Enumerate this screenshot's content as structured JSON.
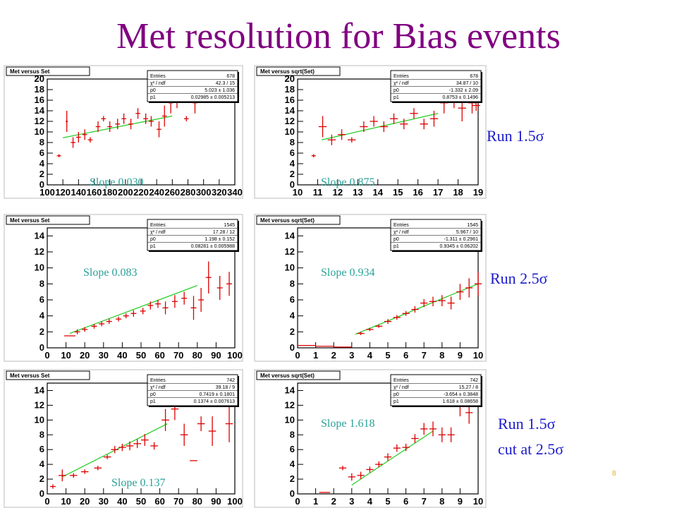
{
  "title": "Met resolution for Bias events",
  "page_number": "8",
  "run_labels": {
    "row1": "Run 1.5σ",
    "row2": "Run 2.5σ",
    "row3_line1": "Run 1.5σ",
    "row3_line2": "cut at 2.5σ"
  },
  "colors": {
    "title": "#800080",
    "slope": "#2aa198",
    "run": "#1c1ccc",
    "data": "#dd0000",
    "fit": "#22cc22"
  },
  "chart_data": [
    {
      "type": "scatter",
      "title": "Met versus Set",
      "slope_label": "Slope 0.030",
      "xlim": [
        100,
        340
      ],
      "ylim": [
        0,
        20
      ],
      "xticks": [
        100,
        120,
        140,
        160,
        180,
        200,
        220,
        240,
        260,
        280,
        300,
        320,
        340
      ],
      "xtick_labels": [
        "100",
        "120",
        "140",
        "160",
        "180",
        "200",
        "220",
        "240",
        "260",
        "280",
        "300",
        "320",
        "340"
      ],
      "yticks": [
        0,
        2,
        4,
        6,
        8,
        10,
        12,
        14,
        16,
        18,
        20
      ],
      "stats": [
        [
          "Entries",
          "678"
        ],
        [
          "χ² / ndf",
          "42.3 / 15"
        ],
        [
          "p0",
          "5.023 ± 1.036"
        ],
        [
          "p1",
          "0.02985 ± 0.005213"
        ]
      ],
      "points": [
        [
          115,
          5.5,
          0,
          0.3
        ],
        [
          125,
          12,
          1.5,
          2
        ],
        [
          133,
          8,
          3,
          1
        ],
        [
          140,
          9,
          3,
          1
        ],
        [
          148,
          9.5,
          3,
          1
        ],
        [
          155,
          8.5,
          3,
          0.5
        ],
        [
          165,
          11,
          3,
          1
        ],
        [
          172,
          12.5,
          3,
          0.5
        ],
        [
          180,
          11,
          3,
          1
        ],
        [
          190,
          11.5,
          3,
          1
        ],
        [
          198,
          12.5,
          3,
          1
        ],
        [
          207,
          11.5,
          3,
          1
        ],
        [
          216,
          13.5,
          3,
          1
        ],
        [
          226,
          12.5,
          3,
          1
        ],
        [
          233,
          12,
          3,
          1
        ],
        [
          243,
          10.5,
          3,
          1.5
        ],
        [
          250,
          13,
          3,
          2
        ],
        [
          258,
          15.5,
          3,
          2
        ],
        [
          266,
          16.5,
          3,
          2
        ],
        [
          278,
          12.5,
          3,
          0.5
        ],
        [
          289,
          15.5,
          3,
          2
        ],
        [
          298,
          18,
          3,
          2
        ]
      ],
      "fit": [
        [
          120,
          8.9
        ],
        [
          260,
          13.0
        ]
      ]
    },
    {
      "type": "scatter",
      "title": "Met versus sqrt(Set)",
      "slope_label": "Slope 0.875",
      "xlim": [
        10,
        19
      ],
      "ylim": [
        0,
        20
      ],
      "xticks": [
        10,
        11,
        12,
        13,
        14,
        15,
        16,
        17,
        18,
        19
      ],
      "xtick_labels": [
        "10",
        "11",
        "12",
        "13",
        "14",
        "15",
        "16",
        "17",
        "18",
        "19"
      ],
      "yticks": [
        0,
        2,
        4,
        6,
        8,
        10,
        12,
        14,
        16,
        18,
        20
      ],
      "stats": [
        [
          "Entries",
          "678"
        ],
        [
          "χ² / ndf",
          "34.87 / 10"
        ],
        [
          "p0",
          "-1.332 ± 2.09"
        ],
        [
          "p1",
          "0.8753 ± 0.1496"
        ]
      ],
      "points": [
        [
          10.8,
          5.5,
          0,
          0.3
        ],
        [
          11.25,
          11,
          0.2,
          2
        ],
        [
          11.7,
          8.5,
          0.2,
          1
        ],
        [
          12.2,
          9.5,
          0.2,
          1
        ],
        [
          12.7,
          8.5,
          0.2,
          0.5
        ],
        [
          13.3,
          11,
          0.2,
          1
        ],
        [
          13.8,
          12,
          0.2,
          1
        ],
        [
          14.3,
          11,
          0.2,
          1
        ],
        [
          14.8,
          12.5,
          0.2,
          1
        ],
        [
          15.3,
          11.5,
          0.2,
          1
        ],
        [
          15.8,
          13.5,
          0.2,
          1
        ],
        [
          16.3,
          11.5,
          0.2,
          1
        ],
        [
          16.8,
          12.5,
          0.2,
          1.5
        ],
        [
          17.3,
          15.5,
          0.2,
          2
        ],
        [
          17.8,
          16.5,
          0.2,
          2
        ],
        [
          18.2,
          14.5,
          0.2,
          2.5
        ],
        [
          18.7,
          15.5,
          0.2,
          2
        ],
        [
          18.9,
          15,
          0.2,
          1
        ]
      ],
      "fit": [
        [
          11.2,
          8.5
        ],
        [
          17.0,
          13.5
        ]
      ]
    },
    {
      "type": "scatter",
      "title": "Met versus Set",
      "slope_label": "Slope 0.083",
      "xlim": [
        0,
        100
      ],
      "ylim": [
        0,
        15
      ],
      "xticks": [
        0,
        10,
        20,
        30,
        40,
        50,
        60,
        70,
        80,
        90,
        100
      ],
      "xtick_labels": [
        "0",
        "10",
        "20",
        "30",
        "40",
        "50",
        "60",
        "70",
        "80",
        "90",
        "100"
      ],
      "yticks": [
        0,
        2,
        4,
        6,
        8,
        10,
        12,
        14
      ],
      "stats": [
        [
          "Entries",
          "1545"
        ],
        [
          "χ² / ndf",
          "17.28 / 12"
        ],
        [
          "p0",
          "1.198 ± 0.152"
        ],
        [
          "p1",
          "0.08281 ± 0.005988"
        ]
      ],
      "points": [
        [
          12,
          1.5,
          3,
          0
        ],
        [
          16,
          2,
          1.5,
          0.3
        ],
        [
          20,
          2.3,
          1.5,
          0.3
        ],
        [
          25,
          2.7,
          1.5,
          0.3
        ],
        [
          29,
          3,
          1.5,
          0.3
        ],
        [
          33,
          3.3,
          1.5,
          0.3
        ],
        [
          38,
          3.6,
          1.5,
          0.3
        ],
        [
          42,
          4,
          1.5,
          0.3
        ],
        [
          46,
          4.3,
          1.5,
          0.4
        ],
        [
          51,
          4.6,
          1.5,
          0.4
        ],
        [
          55,
          5.3,
          1.5,
          0.5
        ],
        [
          59,
          5.5,
          1.5,
          0.5
        ],
        [
          63,
          5,
          1.5,
          0.8
        ],
        [
          68,
          5.8,
          1.5,
          0.8
        ],
        [
          73,
          6.2,
          1.5,
          0.8
        ],
        [
          78,
          5,
          1.5,
          1.5
        ],
        [
          82,
          6,
          1.5,
          1.5
        ],
        [
          86,
          8.8,
          1.5,
          2
        ],
        [
          92,
          7.5,
          1.5,
          1.5
        ],
        [
          97,
          8,
          1.5,
          1.5
        ]
      ],
      "fit": [
        [
          12,
          1.8
        ],
        [
          80,
          7.8
        ]
      ]
    },
    {
      "type": "scatter",
      "title": "Met versus sqrt(Set)",
      "slope_label": "Slope 0.934",
      "xlim": [
        0,
        10
      ],
      "ylim": [
        0,
        15
      ],
      "xticks": [
        0,
        1,
        2,
        3,
        4,
        5,
        6,
        7,
        8,
        9,
        10
      ],
      "xtick_labels": [
        "0",
        "1",
        "2",
        "3",
        "4",
        "5",
        "6",
        "7",
        "8",
        "9",
        "10"
      ],
      "yticks": [
        0,
        2,
        4,
        6,
        8,
        10,
        12,
        14
      ],
      "stats": [
        [
          "Entries",
          "1545"
        ],
        [
          "χ² / ndf",
          "5.967 / 10"
        ],
        [
          "p0",
          "-1.311 ± 0.2961"
        ],
        [
          "p1",
          "0.9345 ± 0.06202"
        ]
      ],
      "points": [
        [
          0.5,
          0.3,
          0.5,
          0
        ],
        [
          1.5,
          0.2,
          0.5,
          0
        ],
        [
          2.5,
          0.1,
          0.5,
          0
        ],
        [
          3.5,
          1.8,
          0.2,
          0.2
        ],
        [
          4.0,
          2.3,
          0.2,
          0.2
        ],
        [
          4.5,
          2.7,
          0.2,
          0.2
        ],
        [
          5.0,
          3.3,
          0.2,
          0.3
        ],
        [
          5.5,
          3.8,
          0.2,
          0.3
        ],
        [
          6.0,
          4.3,
          0.2,
          0.3
        ],
        [
          6.5,
          4.8,
          0.2,
          0.4
        ],
        [
          7.0,
          5.6,
          0.2,
          0.5
        ],
        [
          7.5,
          5.8,
          0.2,
          0.6
        ],
        [
          8.0,
          5.9,
          0.2,
          0.7
        ],
        [
          8.5,
          5.6,
          0.2,
          0.8
        ],
        [
          9.0,
          7,
          0.2,
          1
        ],
        [
          9.5,
          7.5,
          0.2,
          1.2
        ],
        [
          10,
          8,
          0.2,
          1.5
        ]
      ],
      "fit": [
        [
          3.2,
          1.7
        ],
        [
          10,
          8.0
        ]
      ]
    },
    {
      "type": "scatter",
      "title": "Met versus Set",
      "slope_label": "Slope 0.137",
      "xlim": [
        0,
        100
      ],
      "ylim": [
        0,
        15
      ],
      "xticks": [
        0,
        10,
        20,
        30,
        40,
        50,
        60,
        70,
        80,
        90,
        100
      ],
      "xtick_labels": [
        "0",
        "10",
        "20",
        "30",
        "40",
        "50",
        "60",
        "70",
        "80",
        "90",
        "100"
      ],
      "yticks": [
        0,
        2,
        4,
        6,
        8,
        10,
        12,
        14
      ],
      "stats": [
        [
          "Entries",
          "742"
        ],
        [
          "χ² / ndf",
          "39.18 / 9"
        ],
        [
          "p0",
          "0.7419 ± 0.1801"
        ],
        [
          "p1",
          "0.1374 ± 0.007613"
        ]
      ],
      "points": [
        [
          3,
          1,
          1.5,
          0.3
        ],
        [
          8,
          2.5,
          2,
          0.8
        ],
        [
          14,
          2.5,
          2,
          0.3
        ],
        [
          20,
          3,
          2,
          0.3
        ],
        [
          27,
          3.5,
          2,
          0.3
        ],
        [
          32,
          5,
          2,
          0.3
        ],
        [
          36,
          6,
          2,
          0.5
        ],
        [
          40,
          6.3,
          2,
          0.5
        ],
        [
          44,
          6.5,
          2,
          0.6
        ],
        [
          48,
          6.8,
          2,
          0.6
        ],
        [
          52,
          7.3,
          2,
          0.8
        ],
        [
          57,
          6.5,
          2,
          0.5
        ],
        [
          63,
          10,
          2,
          1.5
        ],
        [
          68,
          11.5,
          2,
          1.5
        ],
        [
          73,
          8,
          2,
          1.5
        ],
        [
          78,
          4.5,
          2,
          0
        ],
        [
          82,
          9.5,
          2,
          1
        ],
        [
          88,
          8.5,
          2,
          2
        ],
        [
          97,
          9.5,
          2,
          2.5
        ]
      ],
      "fit": [
        [
          8,
          2.3
        ],
        [
          64,
          9.5
        ]
      ]
    },
    {
      "type": "scatter",
      "title": "Met versus sqrt(Set)",
      "slope_label": "Slope 1.618",
      "xlim": [
        0,
        10
      ],
      "ylim": [
        0,
        15
      ],
      "xticks": [
        0,
        1,
        2,
        3,
        4,
        5,
        6,
        7,
        8,
        9,
        10
      ],
      "xtick_labels": [
        "0",
        "1",
        "2",
        "3",
        "4",
        "5",
        "6",
        "7",
        "8",
        "9",
        "10"
      ],
      "yticks": [
        0,
        2,
        4,
        6,
        8,
        10,
        12,
        14
      ],
      "stats": [
        [
          "Entries",
          "742"
        ],
        [
          "χ² / ndf",
          "15.27 / 8"
        ],
        [
          "p0",
          "-3.654 ± 0.3848"
        ],
        [
          "p1",
          "1.618 ± 0.08658"
        ]
      ],
      "points": [
        [
          1.5,
          0.2,
          0.3,
          0
        ],
        [
          2.5,
          3.5,
          0.2,
          0.3
        ],
        [
          3.0,
          2.3,
          0.2,
          0.5
        ],
        [
          3.5,
          2.5,
          0.2,
          0.5
        ],
        [
          4.0,
          3.3,
          0.2,
          0.4
        ],
        [
          4.5,
          4,
          0.2,
          0.4
        ],
        [
          5.0,
          5,
          0.2,
          0.5
        ],
        [
          5.5,
          6.2,
          0.2,
          0.5
        ],
        [
          6.0,
          6.3,
          0.2,
          0.5
        ],
        [
          6.5,
          7.5,
          0.2,
          0.6
        ],
        [
          7.0,
          8.8,
          0.2,
          0.8
        ],
        [
          7.5,
          8.8,
          0.2,
          1
        ],
        [
          8.0,
          8,
          0.2,
          1
        ],
        [
          8.5,
          8,
          0.2,
          1
        ],
        [
          9.0,
          12.5,
          0.2,
          2
        ],
        [
          9.5,
          11,
          0.2,
          1.5
        ]
      ],
      "fit": [
        [
          3.0,
          1.2
        ],
        [
          7.5,
          8.5
        ]
      ]
    }
  ]
}
